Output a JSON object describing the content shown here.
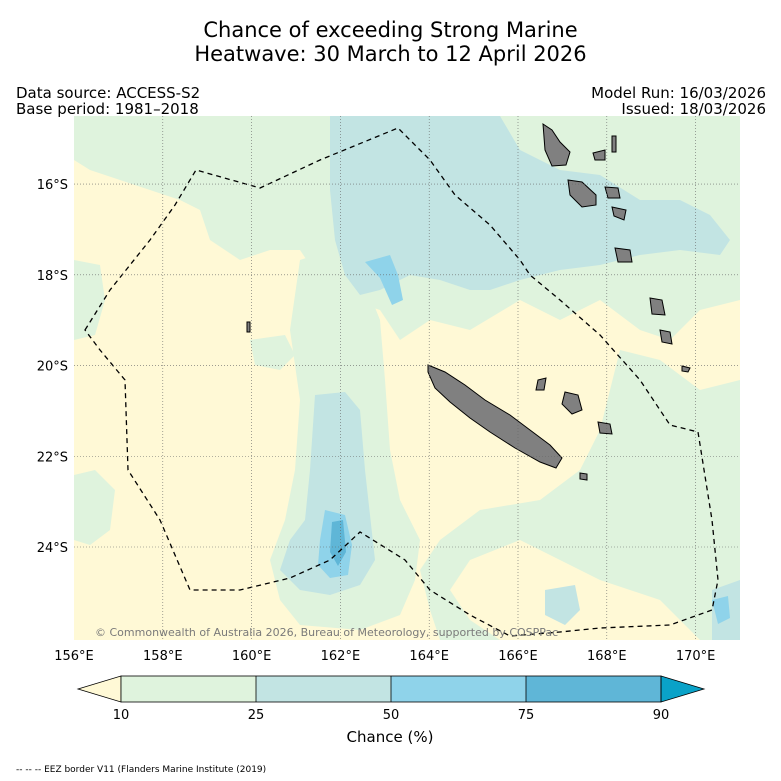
{
  "title": {
    "line1": "Chance of exceeding Strong Marine",
    "line2": "Heatwave: 30 March to 12 April 2026"
  },
  "meta": {
    "data_source": "Data source: ACCESS-S2",
    "base_period": "Base period: 1981–2018",
    "model_run": "Model Run: 16/03/2026",
    "issued": "Issued: 18/03/2026"
  },
  "copyright": "© Commonwealth of Australia 2026, Bureau of Meteorology, supported by COSPPac",
  "footnote": "-- -- -- EEZ border V11 (Flanders Marine Institute (2019)",
  "colors": {
    "below10": "#fff9d6",
    "b10_25": "#dff3dd",
    "b25_50": "#c2e4e3",
    "b50_75": "#8fd3ea",
    "b75_90": "#5fb6d7",
    "above90": "#0aa2c8",
    "land": "#808080"
  },
  "chart_data": {
    "type": "heatmap",
    "title": "Chance of exceeding Strong Marine Heatwave: 30 March to 12 April 2026",
    "xlabel": "",
    "ylabel": "",
    "x_ticks": [
      "156°E",
      "158°E",
      "160°E",
      "162°E",
      "164°E",
      "166°E",
      "168°E",
      "170°E"
    ],
    "x_tick_values": [
      156,
      158,
      160,
      162,
      164,
      166,
      168,
      170
    ],
    "y_ticks": [
      "16°S",
      "18°S",
      "20°S",
      "22°S",
      "24°S"
    ],
    "y_tick_values": [
      -16,
      -18,
      -20,
      -22,
      -24
    ],
    "xlim": [
      156,
      171
    ],
    "ylim": [
      -26.05,
      -14.5
    ],
    "grid": true,
    "colorbar": {
      "label": "Chance (%)",
      "boundaries": [
        10,
        25,
        50,
        75,
        90
      ],
      "tick_labels": [
        "10",
        "25",
        "50",
        "75",
        "90"
      ],
      "extend": "both"
    },
    "regions": [
      {
        "name": "moderate-band-west",
        "chance_range": "25-50",
        "lon_range": [
          160.4,
          162.5
        ],
        "lat_range": [
          -25.6,
          -14.8
        ]
      },
      {
        "name": "high-patch-south",
        "chance_range": "50-75",
        "lon_range": [
          161.3,
          162.3
        ],
        "lat_range": [
          -25.0,
          -23.7
        ]
      },
      {
        "name": "max-patch-south",
        "chance_range": "75-90",
        "lon_range": [
          161.9,
          162.1
        ],
        "lat_range": [
          -24.5,
          -24.0
        ]
      },
      {
        "name": "moderate-band-north",
        "chance_range": "25-50",
        "lon_range": [
          160.5,
          169.0
        ],
        "lat_range": [
          -19.5,
          -15.0
        ]
      },
      {
        "name": "high-patch-north",
        "chance_range": "50-75",
        "lon_range": [
          162.4,
          163.6
        ],
        "lat_range": [
          -19.0,
          -18.0
        ]
      }
    ],
    "annotations": [
      "EEZ border V11 (dashed)"
    ]
  }
}
